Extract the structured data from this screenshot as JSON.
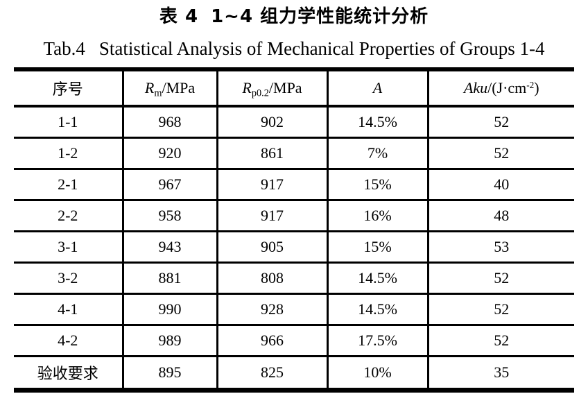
{
  "captions": {
    "zh_tag": "表 4",
    "zh_text": "1~4 组力学性能统计分析",
    "en_tag": "Tab.4",
    "en_text": "Statistical Analysis of Mechanical Properties of Groups 1-4"
  },
  "table": {
    "header": {
      "col0": "序号",
      "col1_sym": "R",
      "col1_sub": "m",
      "col1_unit": "/MPa",
      "col2_sym": "R",
      "col2_sub": "p0.2",
      "col2_unit": "/MPa",
      "col3_sym": "A",
      "col4_sym": "Aku",
      "col4_pre": "/(J·cm",
      "col4_sup": "-2",
      "col4_post": ")"
    },
    "rows": [
      [
        "1-1",
        "968",
        "902",
        "14.5%",
        "52"
      ],
      [
        "1-2",
        "920",
        "861",
        "7%",
        "52"
      ],
      [
        "2-1",
        "967",
        "917",
        "15%",
        "40"
      ],
      [
        "2-2",
        "958",
        "917",
        "16%",
        "48"
      ],
      [
        "3-1",
        "943",
        "905",
        "15%",
        "53"
      ],
      [
        "3-2",
        "881",
        "808",
        "14.5%",
        "52"
      ],
      [
        "4-1",
        "990",
        "928",
        "14.5%",
        "52"
      ],
      [
        "4-2",
        "989",
        "966",
        "17.5%",
        "52"
      ],
      [
        "验收要求",
        "895",
        "825",
        "10%",
        "35"
      ]
    ]
  },
  "colors": {
    "ink": "#000000",
    "paper": "#ffffff"
  }
}
